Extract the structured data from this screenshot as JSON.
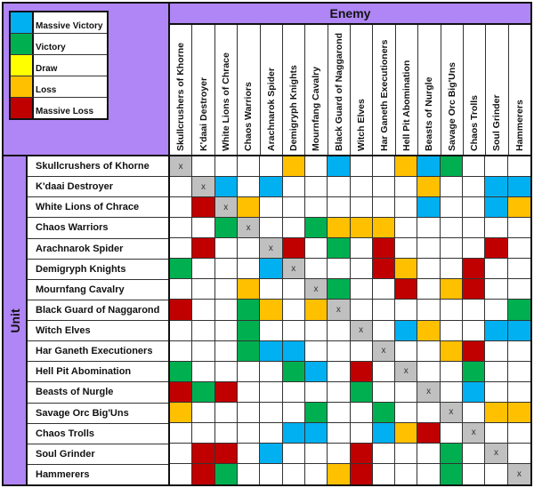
{
  "legend": {
    "items": [
      {
        "key": "MV",
        "label": "Massive Victory",
        "color": "#00b0f0"
      },
      {
        "key": "V",
        "label": "Victory",
        "color": "#00b050"
      },
      {
        "key": "D",
        "label": "Draw",
        "color": "#ffff00"
      },
      {
        "key": "L",
        "label": "Loss",
        "color": "#ffc000"
      },
      {
        "key": "ML",
        "label": "Massive Loss",
        "color": "#c00000"
      }
    ]
  },
  "colors": {
    "header_bg": "#b085f5",
    "self_cell": "#c0c0c0",
    "empty_cell": "#ffffff"
  },
  "enemy_header": "Enemy",
  "unit_header": "Unit",
  "self_marker": "x",
  "units": [
    "Skullcrushers of Khorne",
    "K'daai Destroyer",
    "White Lions of Chrace",
    "Chaos Warriors",
    "Arachnarok Spider",
    "Demigryph Knights",
    "Mournfang Cavalry",
    "Black Guard of Naggarond",
    "Witch Elves",
    "Har Ganeth Executioners",
    "Hell Pit Abomination",
    "Beasts of Nurgle",
    "Savage Orc Big'Uns",
    "Chaos Trolls",
    "Soul Grinder",
    "Hammerers"
  ],
  "chart_data": {
    "type": "heatmap",
    "title": "",
    "xlabel": "Enemy",
    "ylabel": "Unit",
    "legend": [
      "Massive Victory",
      "Victory",
      "Draw",
      "Loss",
      "Massive Loss"
    ],
    "legend_position": "top-left",
    "x": [
      "Skullcrushers of Khorne",
      "K'daai Destroyer",
      "White Lions of Chrace",
      "Chaos Warriors",
      "Arachnarok Spider",
      "Demigryph Knights",
      "Mournfang Cavalry",
      "Black Guard of Naggarond",
      "Witch Elves",
      "Har Ganeth Executioners",
      "Hell Pit Abomination",
      "Beasts of Nurgle",
      "Savage Orc Big'Uns",
      "Chaos Trolls",
      "Soul Grinder",
      "Hammerers"
    ],
    "y": [
      "Skullcrushers of Khorne",
      "K'daai Destroyer",
      "White Lions of Chrace",
      "Chaos Warriors",
      "Arachnarok Spider",
      "Demigryph Knights",
      "Mournfang Cavalry",
      "Black Guard of Naggarond",
      "Witch Elves",
      "Har Ganeth Executioners",
      "Hell Pit Abomination",
      "Beasts of Nurgle",
      "Savage Orc Big'Uns",
      "Chaos Trolls",
      "Soul Grinder",
      "Hammerers"
    ],
    "matrix": [
      [
        "X",
        "",
        "",
        "",
        "",
        "L",
        "",
        "MV",
        "",
        "",
        "L",
        "MV",
        "V",
        "",
        "",
        ""
      ],
      [
        "",
        "X",
        "MV",
        "",
        "MV",
        "",
        "",
        "",
        "",
        "",
        "",
        "L",
        "",
        "",
        "MV",
        "MV"
      ],
      [
        "",
        "ML",
        "X",
        "L",
        "",
        "",
        "",
        "",
        "",
        "",
        "",
        "MV",
        "",
        "",
        "MV",
        "L"
      ],
      [
        "",
        "",
        "V",
        "X",
        "",
        "",
        "V",
        "L",
        "L",
        "L",
        "",
        "",
        "",
        "",
        "",
        ""
      ],
      [
        "",
        "ML",
        "",
        "",
        "X",
        "ML",
        "",
        "V",
        "",
        "ML",
        "",
        "",
        "",
        "",
        "ML",
        ""
      ],
      [
        "V",
        "",
        "",
        "",
        "MV",
        "X",
        "",
        "",
        "",
        "ML",
        "L",
        "",
        "",
        "ML",
        "",
        ""
      ],
      [
        "",
        "",
        "",
        "L",
        "",
        "",
        "X",
        "V",
        "",
        "",
        "ML",
        "",
        "L",
        "ML",
        "",
        ""
      ],
      [
        "ML",
        "",
        "",
        "V",
        "L",
        "",
        "L",
        "X",
        "",
        "",
        "",
        "",
        "",
        "",
        "",
        "V"
      ],
      [
        "",
        "",
        "",
        "V",
        "",
        "",
        "",
        "",
        "X",
        "",
        "MV",
        "L",
        "",
        "",
        "MV",
        "MV"
      ],
      [
        "",
        "",
        "",
        "V",
        "MV",
        "MV",
        "",
        "",
        "",
        "X",
        "",
        "",
        "L",
        "ML",
        "",
        ""
      ],
      [
        "V",
        "",
        "",
        "",
        "",
        "V",
        "MV",
        "",
        "ML",
        "",
        "X",
        "",
        "",
        "V",
        "",
        ""
      ],
      [
        "ML",
        "V",
        "ML",
        "",
        "",
        "",
        "",
        "",
        "V",
        "",
        "",
        "X",
        "",
        "MV",
        "",
        ""
      ],
      [
        "L",
        "",
        "",
        "",
        "",
        "",
        "V",
        "",
        "",
        "V",
        "",
        "",
        "X",
        "",
        "L",
        "L"
      ],
      [
        "",
        "",
        "",
        "",
        "",
        "MV",
        "MV",
        "",
        "",
        "MV",
        "L",
        "ML",
        "",
        "X",
        "",
        ""
      ],
      [
        "",
        "ML",
        "ML",
        "",
        "MV",
        "",
        "",
        "",
        "ML",
        "",
        "",
        "",
        "V",
        "",
        "X",
        ""
      ],
      [
        "",
        "ML",
        "V",
        "",
        "",
        "",
        "",
        "L",
        "ML",
        "",
        "",
        "",
        "V",
        "",
        "",
        "X"
      ]
    ]
  }
}
